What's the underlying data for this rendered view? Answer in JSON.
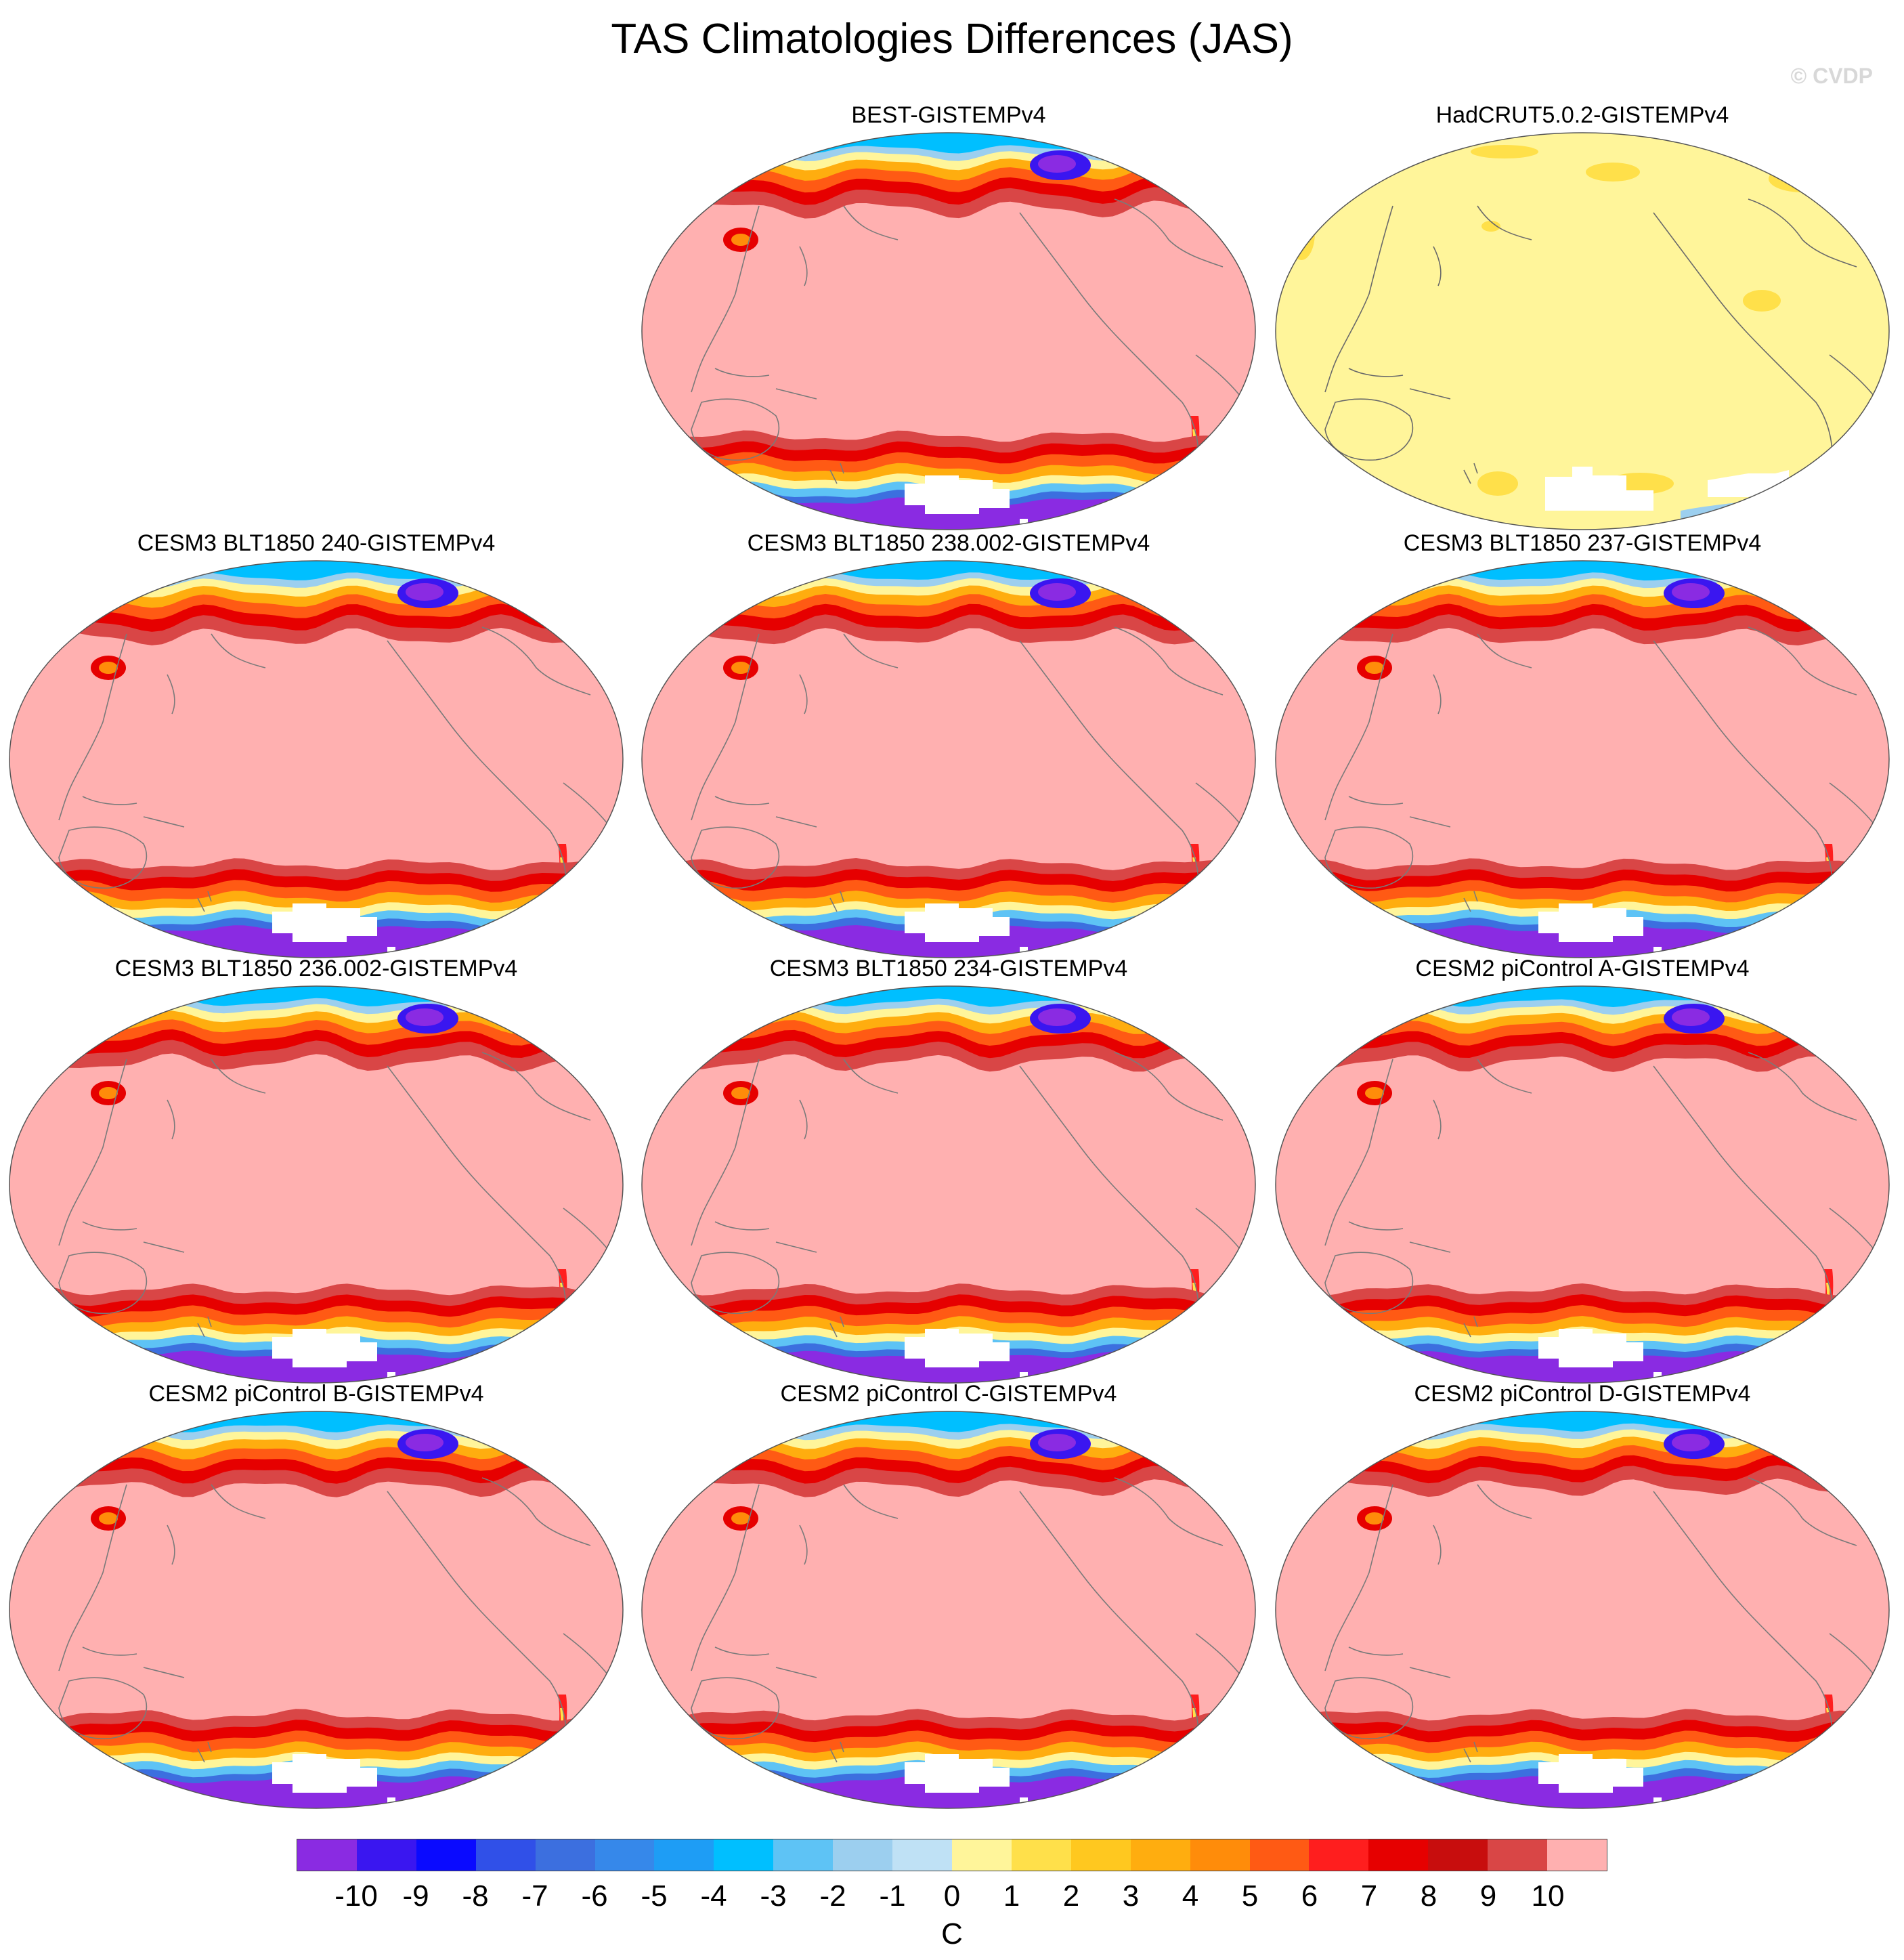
{
  "title": "TAS Climatologies Differences (JAS)",
  "copyright": "© CVDP",
  "colors": {
    "base": "#ffb0b0",
    "white": "#ffffff",
    "coast": "#808080",
    "border": "#555555"
  },
  "panels": [
    {
      "name": "best",
      "label": "BEST-GISTEMPv4",
      "style": "model"
    },
    {
      "name": "hadcrut",
      "label": "HadCRUT5.0.2-GISTEMPv4",
      "style": "near-zero"
    },
    {
      "name": "cesm3-240",
      "label": "CESM3 BLT1850 240-GISTEMPv4",
      "style": "model"
    },
    {
      "name": "cesm3-238",
      "label": "CESM3 BLT1850 238.002-GISTEMPv4",
      "style": "model"
    },
    {
      "name": "cesm3-237",
      "label": "CESM3 BLT1850 237-GISTEMPv4",
      "style": "model"
    },
    {
      "name": "cesm3-236",
      "label": "CESM3 BLT1850 236.002-GISTEMPv4",
      "style": "model"
    },
    {
      "name": "cesm3-234",
      "label": "CESM3 BLT1850 234-GISTEMPv4",
      "style": "model"
    },
    {
      "name": "cesm2-a",
      "label": "CESM2 piControl A-GISTEMPv4",
      "style": "model"
    },
    {
      "name": "cesm2-b",
      "label": "CESM2 piControl B-GISTEMPv4",
      "style": "model"
    },
    {
      "name": "cesm2-c",
      "label": "CESM2 piControl C-GISTEMPv4",
      "style": "model"
    },
    {
      "name": "cesm2-d",
      "label": "CESM2 piControl D-GISTEMPv4",
      "style": "model"
    }
  ],
  "colorbar": {
    "units": "C",
    "ticks": [
      "-10",
      "-9",
      "-8",
      "-7",
      "-6",
      "-5",
      "-4",
      "-3",
      "-2",
      "-1",
      "0",
      "1",
      "2",
      "3",
      "4",
      "5",
      "6",
      "7",
      "8",
      "9",
      "10"
    ],
    "colors": [
      "#8a2be2",
      "#3a16f0",
      "#0a0aff",
      "#3050e8",
      "#3c6fdf",
      "#3688ea",
      "#1e9df5",
      "#00bfff",
      "#5ec3f5",
      "#9ccfef",
      "#bfe1f5",
      "#fff59a",
      "#ffe04a",
      "#ffc81f",
      "#ffad0f",
      "#ff8c0a",
      "#ff5a14",
      "#ff1e1e",
      "#e60000",
      "#c80d0d",
      "#d94646",
      "#ffb0b0"
    ]
  }
}
